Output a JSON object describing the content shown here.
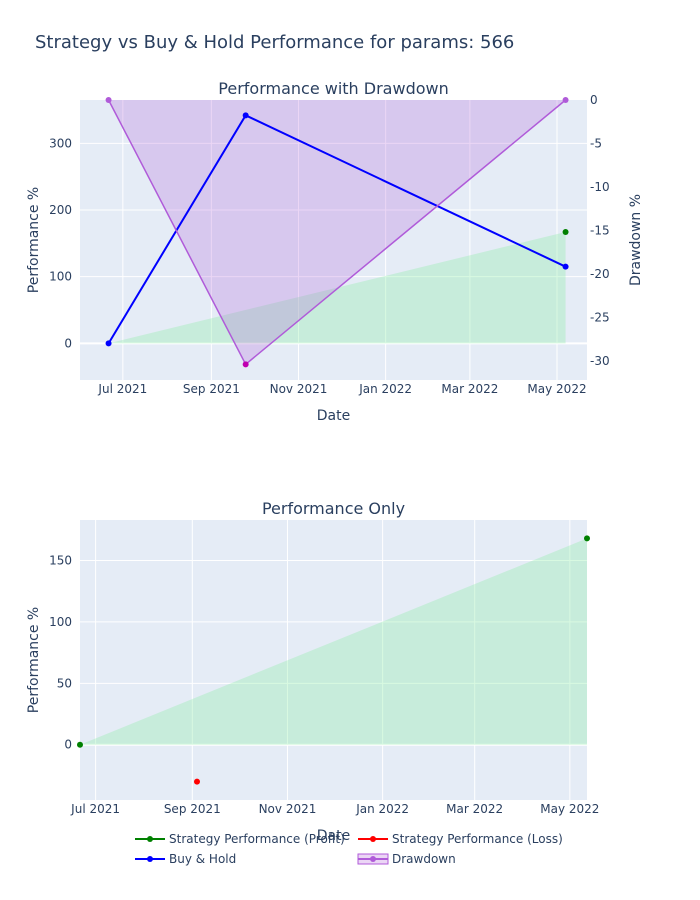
{
  "title": "Strategy vs Buy & Hold Performance for params: 566",
  "colors": {
    "profit": "#008000",
    "loss": "#ff0000",
    "buyhold": "#0000ff",
    "drawdown": "#b05bd9",
    "drawdown_fill": "rgba(176,91,217,0.25)",
    "profit_fill": "rgba(144,238,170,0.35)"
  },
  "chart_data": [
    {
      "type": "line",
      "title": "Performance with Drawdown",
      "xlabel": "Date",
      "ylabel": "Performance %",
      "y2label": "Drawdown %",
      "xlim": [
        "2021-06-01",
        "2022-05-22"
      ],
      "ylim": [
        -55,
        365
      ],
      "y2lim": [
        -32.2,
        0
      ],
      "xticks": [
        {
          "date": "2021-07-01",
          "label": "Jul 2021"
        },
        {
          "date": "2021-09-01",
          "label": "Sep 2021"
        },
        {
          "date": "2021-11-01",
          "label": "Nov 2021"
        },
        {
          "date": "2022-01-01",
          "label": "Jan 2022"
        },
        {
          "date": "2022-03-01",
          "label": "Mar 2022"
        },
        {
          "date": "2022-05-01",
          "label": "May 2022"
        }
      ],
      "yticks": [
        0,
        100,
        200,
        300
      ],
      "y2ticks": [
        0,
        -5,
        -10,
        -15,
        -20,
        -25,
        -30
      ],
      "series": [
        {
          "name": "Strategy Performance (Profit)",
          "axis": "y",
          "x": [
            "2021-06-21",
            "2022-05-07"
          ],
          "values": [
            0,
            167
          ],
          "markers": [
            "2022-05-07"
          ],
          "fill": true
        },
        {
          "name": "Buy & Hold",
          "axis": "y",
          "x": [
            "2021-06-21",
            "2021-09-25",
            "2022-05-07"
          ],
          "values": [
            0,
            342,
            115
          ],
          "markers": [
            "2021-06-21",
            "2021-09-25",
            "2022-05-07"
          ]
        },
        {
          "name": "Drawdown",
          "axis": "y2",
          "x": [
            "2021-06-21",
            "2021-09-25",
            "2022-05-07"
          ],
          "values": [
            0,
            -30.4,
            0
          ],
          "markers": [
            "2021-06-21",
            "2021-09-25",
            "2022-05-07"
          ],
          "fill": true
        }
      ]
    },
    {
      "type": "line",
      "title": "Performance Only",
      "xlabel": "Date",
      "ylabel": "Performance %",
      "xlim": [
        "2021-06-21",
        "2022-05-12"
      ],
      "ylim": [
        -45,
        183
      ],
      "xticks": [
        {
          "date": "2021-07-01",
          "label": "Jul 2021"
        },
        {
          "date": "2021-09-01",
          "label": "Sep 2021"
        },
        {
          "date": "2021-11-01",
          "label": "Nov 2021"
        },
        {
          "date": "2022-01-01",
          "label": "Jan 2022"
        },
        {
          "date": "2022-03-01",
          "label": "Mar 2022"
        },
        {
          "date": "2022-05-01",
          "label": "May 2022"
        }
      ],
      "yticks": [
        0,
        50,
        100,
        150
      ],
      "series": [
        {
          "name": "Strategy Performance (Profit)",
          "x": [
            "2021-06-21",
            "2022-05-12"
          ],
          "values": [
            0,
            168
          ],
          "markers": [
            "2021-06-21",
            "2022-05-12"
          ],
          "fill": true
        },
        {
          "name": "Strategy Performance (Loss)",
          "x": [
            "2021-09-04"
          ],
          "values": [
            -30
          ],
          "markers": [
            "2021-09-04"
          ]
        }
      ]
    }
  ],
  "legend": [
    {
      "label": "Strategy Performance (Profit)",
      "color_key": "profit"
    },
    {
      "label": "Strategy Performance (Loss)",
      "color_key": "loss"
    },
    {
      "label": "Buy & Hold",
      "color_key": "buyhold"
    },
    {
      "label": "Drawdown",
      "color_key": "drawdown"
    }
  ]
}
